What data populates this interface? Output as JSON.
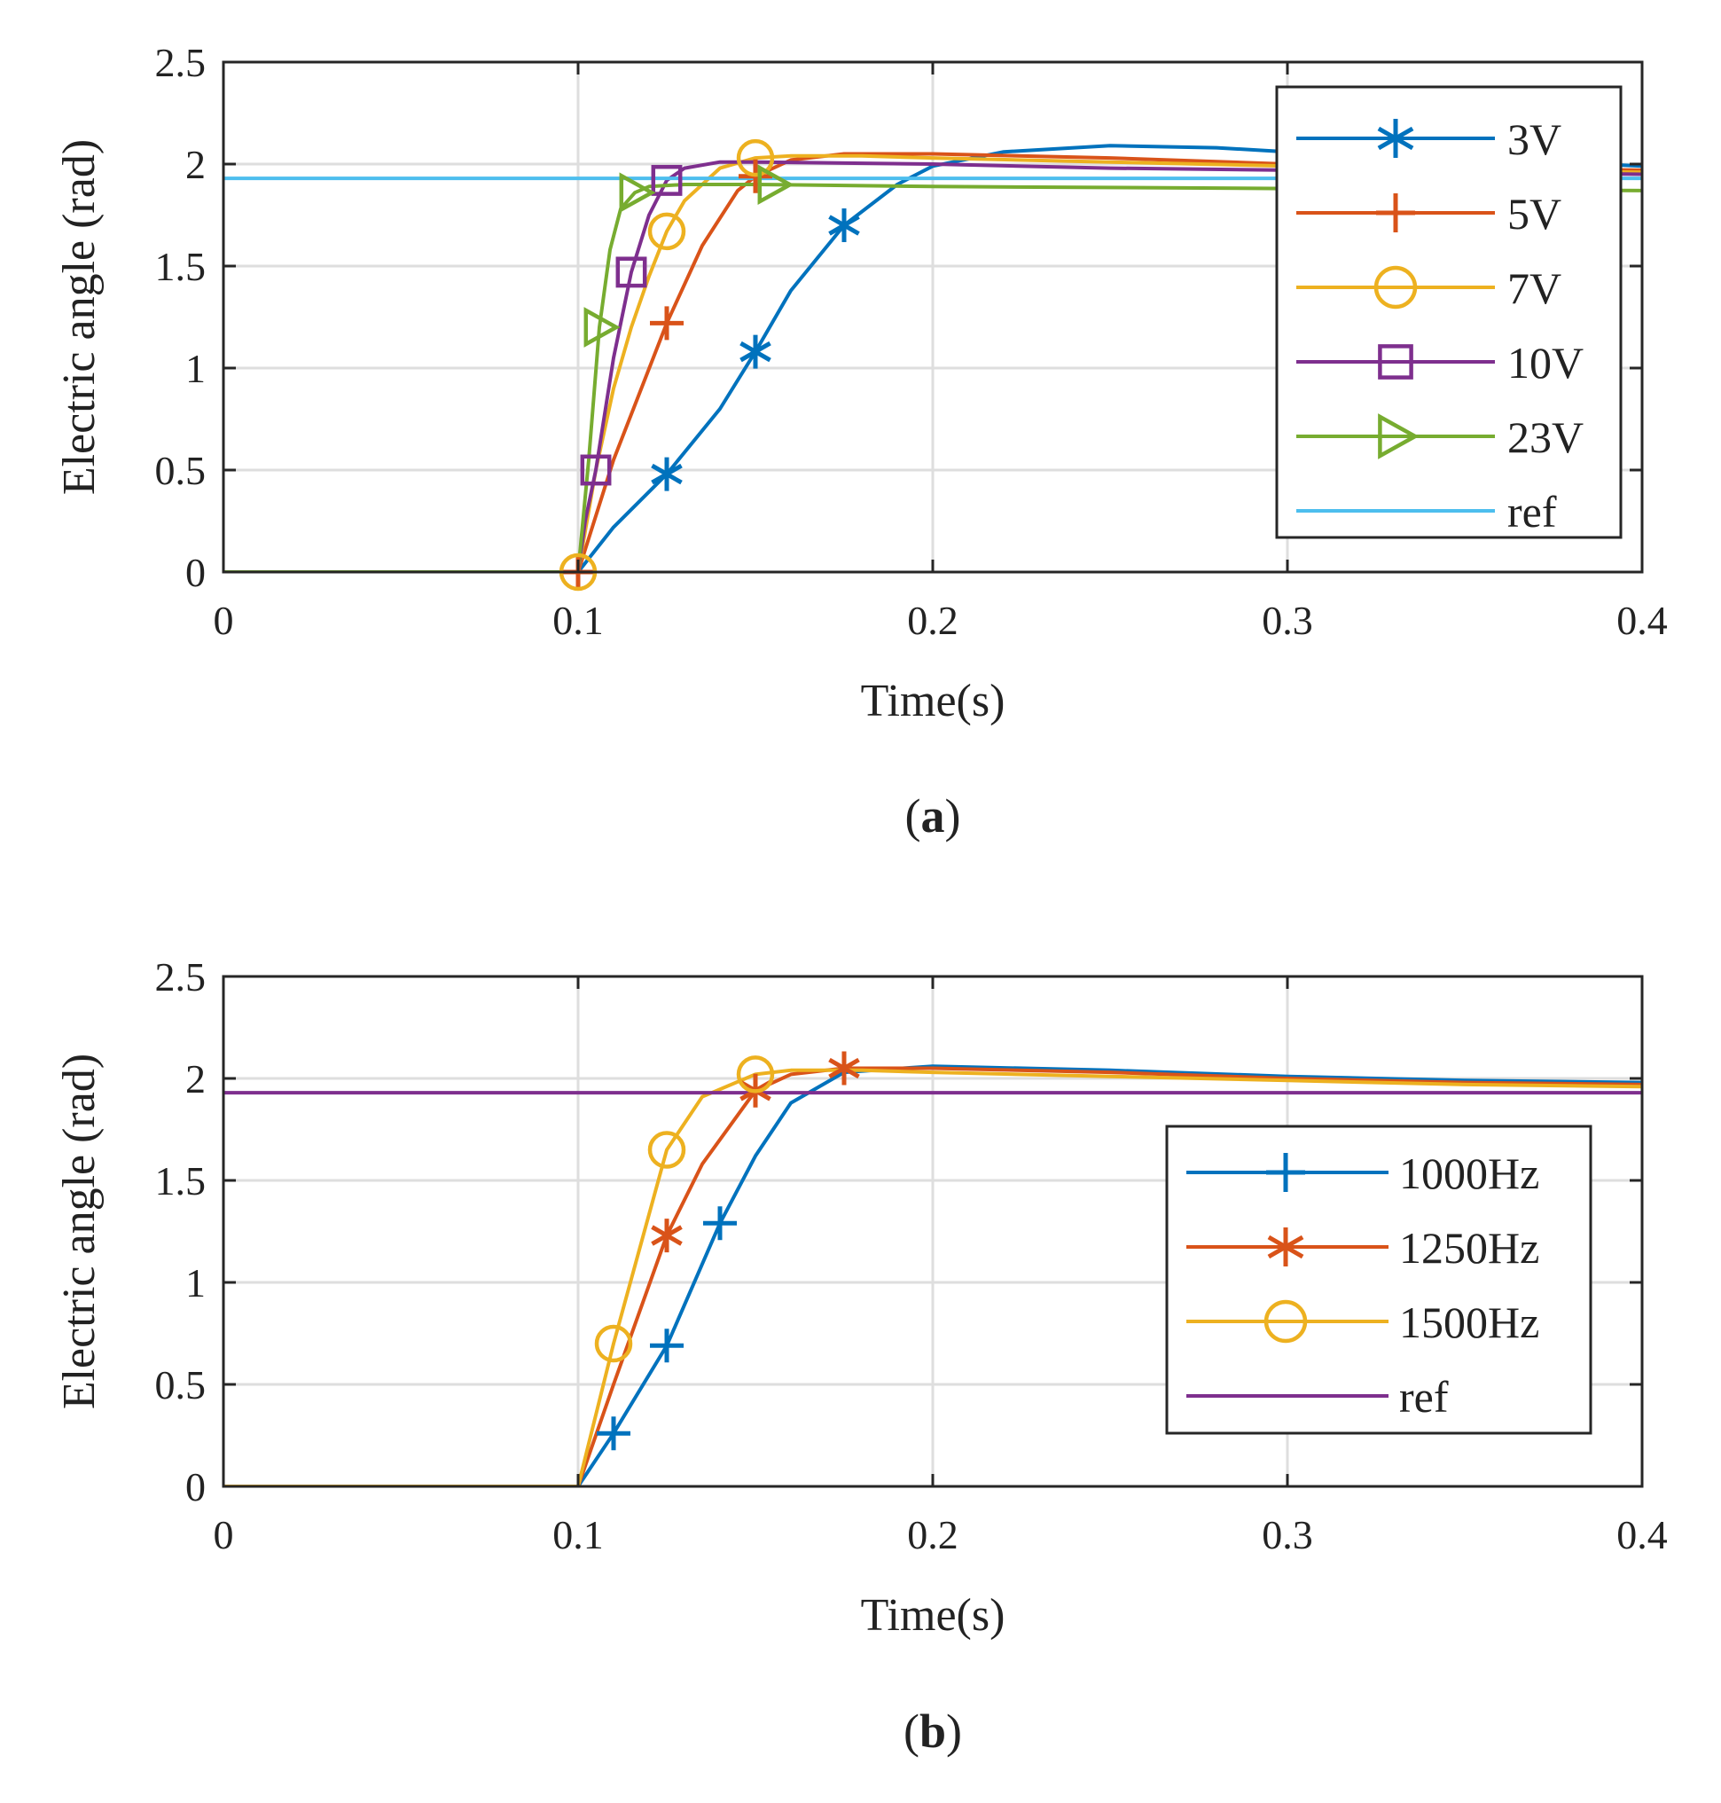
{
  "chart_data": [
    {
      "type": "line",
      "id": "a",
      "caption_letter": "a",
      "xlabel": "Time(s)",
      "ylabel": "Electric angle (rad)",
      "xlim": [
        0,
        0.4
      ],
      "ylim": [
        0,
        2.5
      ],
      "xticks": [
        0,
        0.1,
        0.2,
        0.3,
        0.4
      ],
      "xtick_labels": [
        "0",
        "0.1",
        "0.2",
        "0.3",
        "0.4"
      ],
      "yticks": [
        0,
        0.5,
        1,
        1.5,
        2,
        2.5
      ],
      "ytick_labels": [
        "0",
        "0.5",
        "1",
        "1.5",
        "2",
        "2.5"
      ],
      "grid": true,
      "legend_position": "top-right",
      "series": [
        {
          "name": "3V",
          "color": "#0072BD",
          "marker": "asterisk",
          "x": [
            0,
            0.1,
            0.11,
            0.125,
            0.14,
            0.15,
            0.16,
            0.175,
            0.19,
            0.2,
            0.22,
            0.25,
            0.28,
            0.3,
            0.35,
            0.4
          ],
          "y": [
            0,
            0,
            0.22,
            0.48,
            0.8,
            1.08,
            1.38,
            1.7,
            1.9,
            1.99,
            2.06,
            2.09,
            2.08,
            2.06,
            2.03,
            1.99
          ],
          "marker_x": [
            0.125,
            0.15,
            0.175
          ]
        },
        {
          "name": "5V",
          "color": "#D95319",
          "marker": "plus",
          "x": [
            0,
            0.1,
            0.11,
            0.125,
            0.135,
            0.145,
            0.15,
            0.16,
            0.175,
            0.2,
            0.25,
            0.3,
            0.35,
            0.4
          ],
          "y": [
            0,
            0,
            0.55,
            1.22,
            1.6,
            1.87,
            1.94,
            2.02,
            2.05,
            2.05,
            2.03,
            2.0,
            1.98,
            1.97
          ],
          "marker_x": [
            0.1,
            0.125,
            0.15
          ]
        },
        {
          "name": "7V",
          "color": "#EDB120",
          "marker": "circle",
          "x": [
            0,
            0.1,
            0.105,
            0.11,
            0.115,
            0.12,
            0.125,
            0.13,
            0.14,
            0.15,
            0.16,
            0.18,
            0.2,
            0.25,
            0.3,
            0.35,
            0.4
          ],
          "y": [
            0,
            0,
            0.5,
            0.9,
            1.2,
            1.45,
            1.67,
            1.82,
            1.98,
            2.03,
            2.04,
            2.04,
            2.03,
            2.01,
            1.99,
            1.97,
            1.96
          ],
          "marker_x": [
            0.1,
            0.125,
            0.15
          ]
        },
        {
          "name": "10V",
          "color": "#7E2F8E",
          "marker": "square",
          "x": [
            0,
            0.1,
            0.102,
            0.105,
            0.11,
            0.115,
            0.12,
            0.125,
            0.13,
            0.14,
            0.15,
            0.2,
            0.25,
            0.3,
            0.35,
            0.4
          ],
          "y": [
            0,
            0,
            0.25,
            0.5,
            1.05,
            1.47,
            1.75,
            1.92,
            1.98,
            2.01,
            2.01,
            2.0,
            1.98,
            1.97,
            1.96,
            1.95
          ],
          "marker_x": [
            0.105,
            0.115,
            0.125
          ]
        },
        {
          "name": "23V",
          "color": "#77AC30",
          "marker": "triangle-right",
          "x": [
            0,
            0.1,
            0.103,
            0.106,
            0.109,
            0.112,
            0.116,
            0.12,
            0.13,
            0.15,
            0.2,
            0.3,
            0.4
          ],
          "y": [
            0,
            0,
            0.55,
            1.2,
            1.58,
            1.78,
            1.86,
            1.89,
            1.9,
            1.9,
            1.89,
            1.88,
            1.87
          ],
          "marker_x": [
            0.106,
            0.116,
            0.155
          ]
        },
        {
          "name": "ref",
          "color": "#4DBEEE",
          "marker": "none",
          "x": [
            0,
            0.4
          ],
          "y": [
            1.93,
            1.93
          ],
          "marker_x": []
        }
      ]
    },
    {
      "type": "line",
      "id": "b",
      "caption_letter": "b",
      "xlabel": "Time(s)",
      "ylabel": "Electric angle (rad)",
      "xlim": [
        0,
        0.4
      ],
      "ylim": [
        0,
        2.5
      ],
      "xticks": [
        0,
        0.1,
        0.2,
        0.3,
        0.4
      ],
      "xtick_labels": [
        "0",
        "0.1",
        "0.2",
        "0.3",
        "0.4"
      ],
      "yticks": [
        0,
        0.5,
        1,
        1.5,
        2,
        2.5
      ],
      "ytick_labels": [
        "0",
        "0.5",
        "1",
        "1.5",
        "2",
        "2.5"
      ],
      "grid": true,
      "legend_position": "right",
      "series": [
        {
          "name": "1000Hz",
          "color": "#0072BD",
          "marker": "plus",
          "x": [
            0,
            0.1,
            0.11,
            0.125,
            0.14,
            0.15,
            0.16,
            0.175,
            0.2,
            0.25,
            0.3,
            0.35,
            0.4
          ],
          "y": [
            0,
            0,
            0.26,
            0.69,
            1.29,
            1.62,
            1.88,
            2.03,
            2.06,
            2.04,
            2.01,
            1.99,
            1.98
          ],
          "marker_x": [
            0.11,
            0.125,
            0.14
          ]
        },
        {
          "name": "1250Hz",
          "color": "#D95319",
          "marker": "asterisk",
          "x": [
            0,
            0.1,
            0.11,
            0.125,
            0.135,
            0.15,
            0.16,
            0.175,
            0.2,
            0.25,
            0.3,
            0.35,
            0.4
          ],
          "y": [
            0,
            0,
            0.5,
            1.23,
            1.58,
            1.94,
            2.02,
            2.05,
            2.05,
            2.03,
            2.0,
            1.98,
            1.97
          ],
          "marker_x": [
            0.125,
            0.15,
            0.175
          ]
        },
        {
          "name": "1500Hz",
          "color": "#EDB120",
          "marker": "circle",
          "x": [
            0,
            0.1,
            0.11,
            0.125,
            0.135,
            0.15,
            0.16,
            0.18,
            0.2,
            0.25,
            0.3,
            0.35,
            0.4
          ],
          "y": [
            0,
            0,
            0.7,
            1.65,
            1.91,
            2.02,
            2.04,
            2.04,
            2.03,
            2.01,
            1.99,
            1.97,
            1.96
          ],
          "marker_x": [
            0.11,
            0.125,
            0.15
          ]
        },
        {
          "name": "ref",
          "color": "#7E2F8E",
          "marker": "none",
          "x": [
            0,
            0.4
          ],
          "y": [
            1.93,
            1.93
          ],
          "marker_x": []
        }
      ]
    }
  ]
}
